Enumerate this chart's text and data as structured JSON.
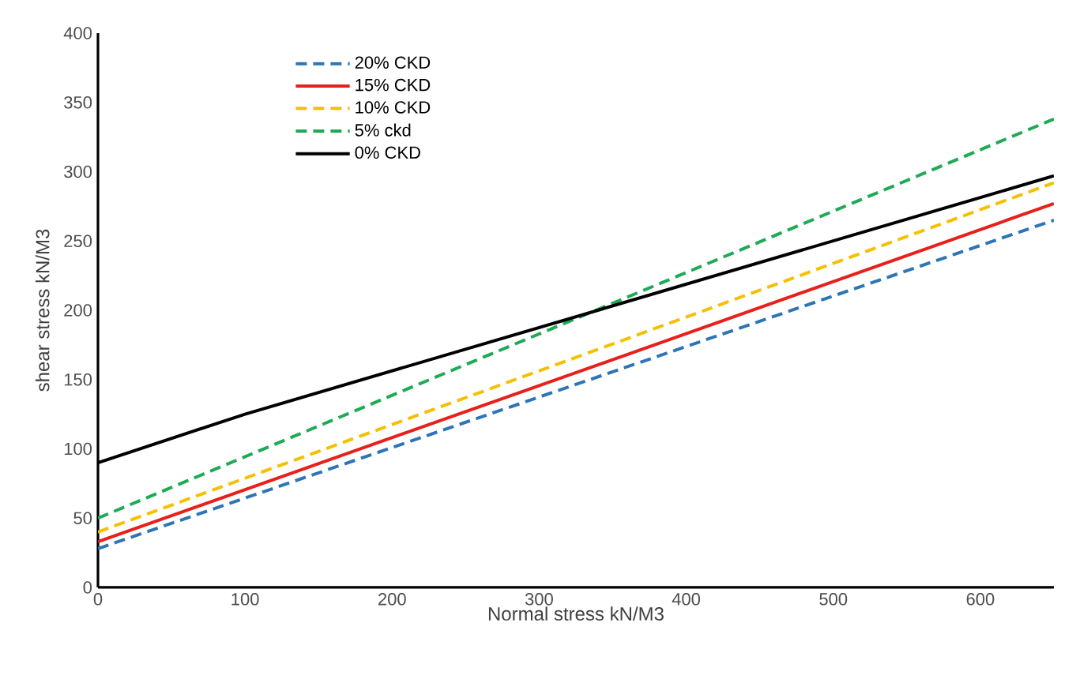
{
  "chart_data": {
    "type": "line",
    "xlabel": "Normal stress  kN/M3",
    "ylabel": "shear stress  kN/M3",
    "xlim": [
      0,
      650
    ],
    "ylim": [
      0,
      400
    ],
    "xticks": [
      0,
      100,
      200,
      300,
      400,
      500,
      600
    ],
    "yticks": [
      0,
      50,
      100,
      150,
      200,
      250,
      300,
      350,
      400
    ],
    "grid": false,
    "legend": "top left",
    "marker": "none",
    "series": [
      {
        "name": "20% CKD",
        "color": "#2e75b6",
        "line_style": "dashed",
        "x": [
          0,
          650
        ],
        "values": [
          28,
          265
        ]
      },
      {
        "name": "15% CKD",
        "color": "#e8201c",
        "line_style": "solid",
        "x": [
          0,
          650
        ],
        "values": [
          33,
          277
        ]
      },
      {
        "name": "10% CKD",
        "color": "#f5c000",
        "line_style": "dashed",
        "x": [
          0,
          650
        ],
        "values": [
          40,
          292
        ]
      },
      {
        "name": "5% ckd",
        "color": "#1faa55",
        "line_style": "dashed",
        "x": [
          0,
          650
        ],
        "values": [
          50,
          338
        ]
      },
      {
        "name": "0% CKD",
        "color": "#000000",
        "line_style": "solid",
        "x": [
          0,
          100,
          650
        ],
        "values": [
          90,
          125,
          297
        ]
      }
    ]
  }
}
